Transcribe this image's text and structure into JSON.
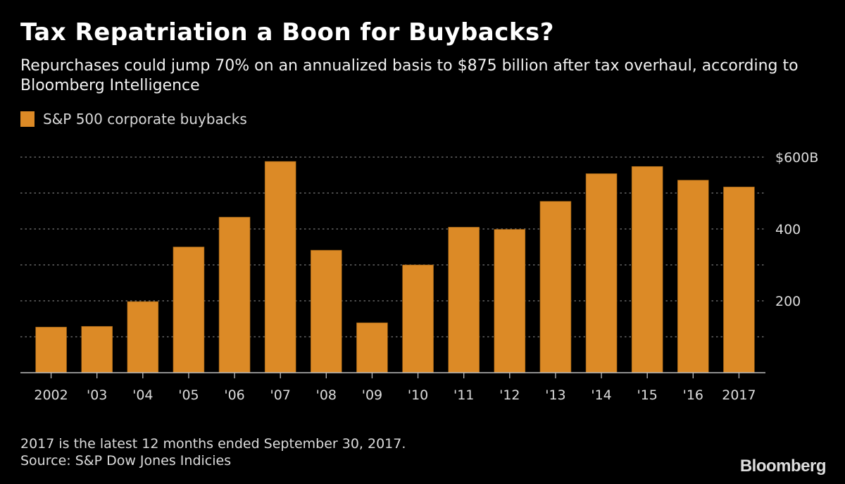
{
  "header": {
    "title": "Tax Repatriation a Boon for Buybacks?",
    "subtitle": "Repurchases could jump 70% on an annualized basis to $875 billion after tax overhaul, according to Bloomberg Intelligence"
  },
  "legend": {
    "label": "S&P 500 corporate buybacks",
    "color": "#dc8a26"
  },
  "footer": {
    "note": "2017 is the latest 12 months ended September 30, 2017.",
    "source": "Source: S&P Dow Jones Indicies",
    "brand": "Bloomberg"
  },
  "chart_data": {
    "type": "bar",
    "title": "Tax Repatriation a Boon for Buybacks?",
    "xlabel": "",
    "ylabel": "",
    "categories": [
      "2002",
      "'03",
      "'04",
      "'05",
      "'06",
      "'07",
      "'08",
      "'09",
      "'10",
      "'11",
      "'12",
      "'13",
      "'14",
      "'15",
      "'16",
      "2017"
    ],
    "series": [
      {
        "name": "S&P 500 corporate buybacks",
        "color": "#dc8a26",
        "values": [
          127,
          129,
          198,
          350,
          433,
          588,
          341,
          139,
          300,
          405,
          399,
          477,
          554,
          574,
          536,
          517
        ]
      }
    ],
    "ylim": [
      0,
      600
    ],
    "y_gridlines": [
      100,
      200,
      300,
      400,
      500,
      600
    ],
    "y_ticks": [
      {
        "value": 600,
        "label": "$600B"
      },
      {
        "value": 400,
        "label": "400"
      },
      {
        "value": 200,
        "label": "200"
      }
    ],
    "y_axis_side": "right",
    "grid": true,
    "legend_position": "top-left",
    "units": "billions of dollars"
  }
}
